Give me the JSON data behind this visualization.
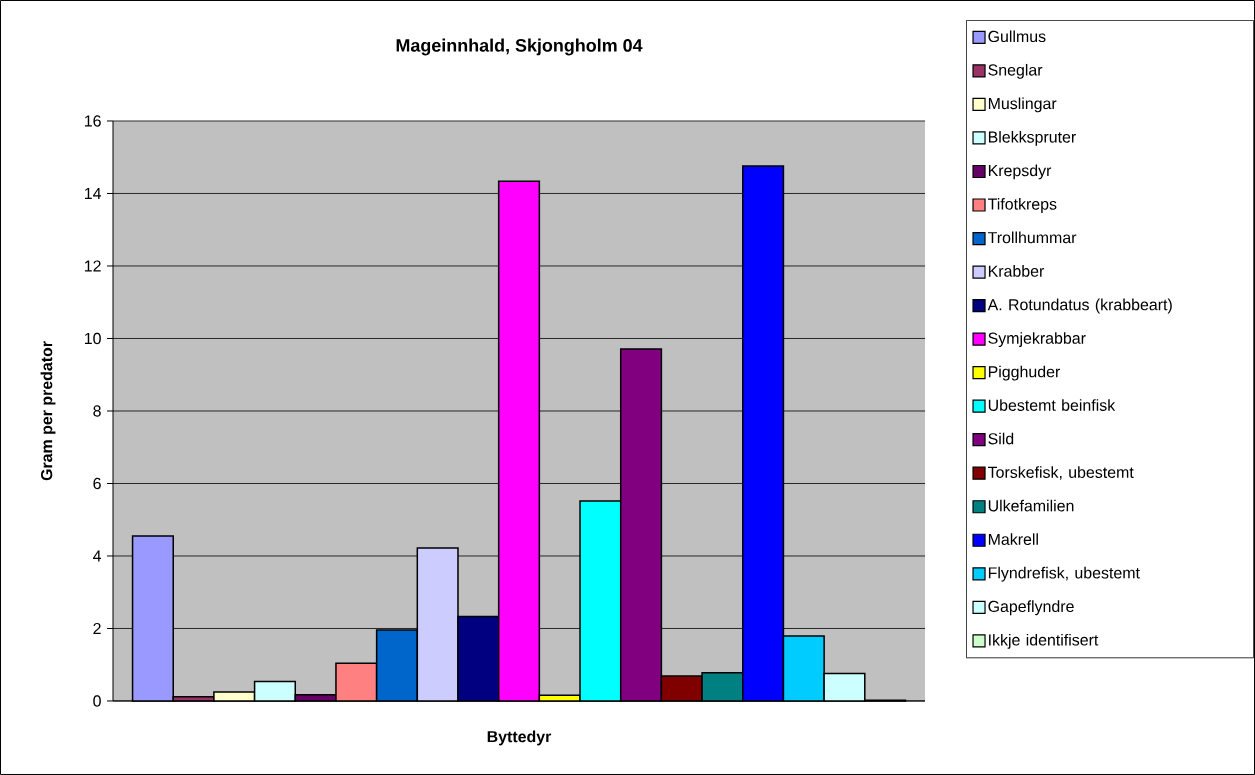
{
  "chart_data": {
    "type": "bar",
    "title": "Mageinnhald, Skjongholm 04",
    "xlabel": "Byttedyr",
    "ylabel": "Gram per predator",
    "categories": [
      null
    ],
    "series": [
      {
        "name": "Gullmus",
        "color": "#9999ff",
        "values": [
          4.55
        ]
      },
      {
        "name": "Sneglar",
        "color": "#993366",
        "values": [
          0.12
        ]
      },
      {
        "name": "Muslingar",
        "color": "#ffffcc",
        "values": [
          0.25
        ]
      },
      {
        "name": "Blekkspruter",
        "color": "#ccffff",
        "values": [
          0.54
        ]
      },
      {
        "name": "Krepsdyr",
        "color": "#660066",
        "values": [
          0.17
        ]
      },
      {
        "name": "Tifotkreps",
        "color": "#ff8080",
        "values": [
          1.04
        ]
      },
      {
        "name": "Trollhummar",
        "color": "#0066cc",
        "values": [
          1.96
        ]
      },
      {
        "name": "Krabber",
        "color": "#ccccff",
        "values": [
          4.22
        ]
      },
      {
        "name": "A. Rotundatus (krabbeart)",
        "color": "#000080",
        "values": [
          2.33
        ]
      },
      {
        "name": "Symjekrabbar",
        "color": "#ff00ff",
        "values": [
          14.34
        ]
      },
      {
        "name": "Pigghuder",
        "color": "#ffff00",
        "values": [
          0.16
        ]
      },
      {
        "name": "Ubestemt beinfisk",
        "color": "#00ffff",
        "values": [
          5.52
        ]
      },
      {
        "name": "Sild",
        "color": "#800080",
        "values": [
          9.71
        ]
      },
      {
        "name": "Torskefisk, ubestemt",
        "color": "#800000",
        "values": [
          0.69
        ]
      },
      {
        "name": "Ulkefamilien",
        "color": "#008080",
        "values": [
          0.78
        ]
      },
      {
        "name": "Makrell",
        "color": "#0000ff",
        "values": [
          14.76
        ]
      },
      {
        "name": "Flyndrefisk, ubestemt",
        "color": "#00ccff",
        "values": [
          1.79
        ]
      },
      {
        "name": "Gapeflyndre",
        "color": "#ccffff",
        "values": [
          0.76
        ]
      },
      {
        "name": "Ikkje identifisert",
        "color": "#ccffcc",
        "values": [
          0.02
        ]
      }
    ],
    "ylim": [
      0,
      16
    ],
    "yticks": [
      0,
      2,
      4,
      6,
      8,
      10,
      12,
      14,
      16
    ],
    "grid": "y",
    "legend": "right"
  }
}
